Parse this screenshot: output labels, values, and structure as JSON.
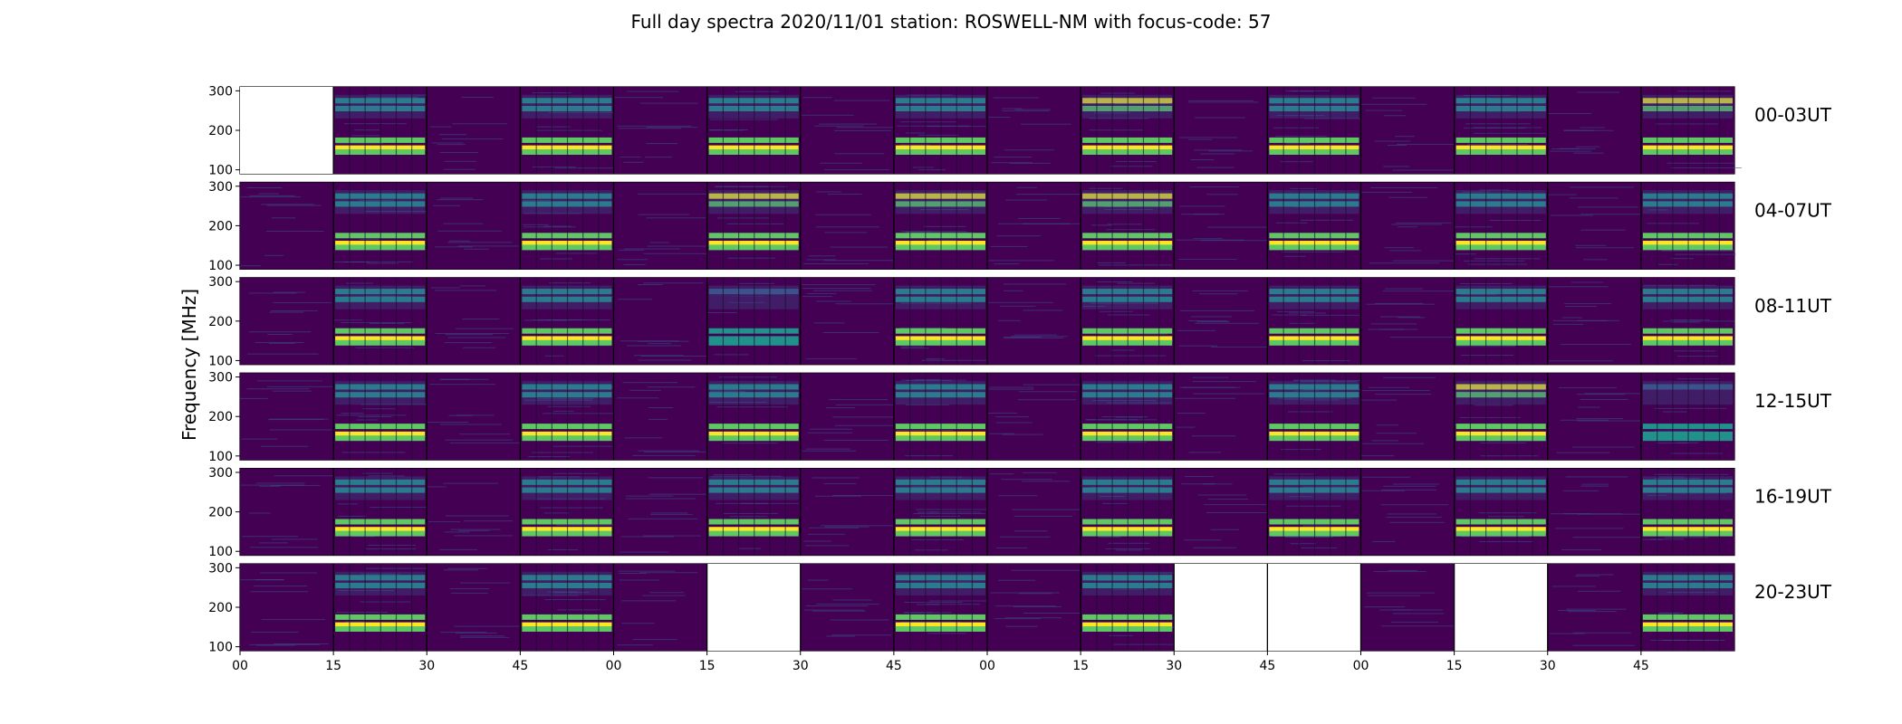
{
  "chart_data": {
    "type": "heatmap",
    "title": "Full day spectra 2020/11/01 station: ROSWELL-NM with focus-code: 57",
    "ylabel": "Frequency [MHz]",
    "xlabel": "",
    "ylim": [
      90,
      310
    ],
    "y_ticks": [
      100,
      200,
      300
    ],
    "x_tick_labels": [
      "00",
      "15",
      "30",
      "45",
      "00",
      "15",
      "30",
      "45",
      "00",
      "15",
      "30",
      "45",
      "00",
      "15",
      "30",
      "45"
    ],
    "colormap": [
      "#440154",
      "#3b528b",
      "#21918c",
      "#5ec962",
      "#fde725"
    ],
    "rows": [
      {
        "label": "00-03UT",
        "panels": [
          -1,
          2,
          0,
          2,
          0,
          2,
          0,
          2,
          0,
          3,
          0,
          2,
          0,
          2,
          0,
          3
        ]
      },
      {
        "label": "04-07UT",
        "panels": [
          0,
          2,
          0,
          2,
          0,
          3,
          0,
          3,
          0,
          3,
          0,
          2,
          0,
          2,
          0,
          2
        ]
      },
      {
        "label": "08-11UT",
        "panels": [
          0,
          2,
          0,
          2,
          0,
          1,
          0,
          2,
          0,
          2,
          0,
          2,
          0,
          2,
          0,
          2
        ]
      },
      {
        "label": "12-15UT",
        "panels": [
          0,
          2,
          0,
          2,
          0,
          2,
          0,
          2,
          0,
          2,
          0,
          2,
          0,
          3,
          0,
          1
        ]
      },
      {
        "label": "16-19UT",
        "panels": [
          0,
          2,
          0,
          2,
          0,
          2,
          0,
          2,
          0,
          2,
          0,
          2,
          0,
          2,
          0,
          2
        ]
      },
      {
        "label": "20-23UT",
        "panels": [
          0,
          2,
          0,
          2,
          0,
          -1,
          0,
          2,
          0,
          2,
          -1,
          -1,
          0,
          -1,
          0,
          2
        ]
      }
    ],
    "band_centers_mhz": [
      275,
      255,
      175,
      155,
      145
    ],
    "grid": false,
    "legend": "none"
  }
}
